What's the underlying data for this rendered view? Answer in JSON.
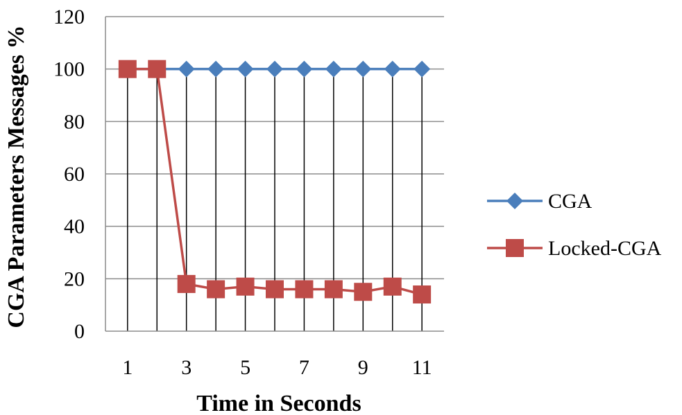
{
  "chart_data": {
    "type": "line",
    "title": "",
    "xlabel": "Time in Seconds",
    "ylabel": "CGA Parameters Messages %",
    "x": [
      1,
      2,
      3,
      4,
      5,
      6,
      7,
      8,
      9,
      10,
      11
    ],
    "x_tick_labels": [
      "1",
      "3",
      "5",
      "7",
      "9",
      "11"
    ],
    "y_tick_labels": [
      "0",
      "20",
      "40",
      "60",
      "80",
      "100",
      "120"
    ],
    "ylim": [
      0,
      120
    ],
    "xlim": [
      0.25,
      11.75
    ],
    "grid": "horizontal and vertical",
    "legend": "right",
    "series": [
      {
        "name": "CGA",
        "color": "#4a7ebb",
        "marker": "diamond",
        "values": [
          100,
          100,
          100,
          100,
          100,
          100,
          100,
          100,
          100,
          100,
          100
        ]
      },
      {
        "name": "Locked-CGA",
        "color": "#be4b48",
        "marker": "square",
        "values": [
          100,
          100,
          18,
          16,
          17,
          16,
          16,
          16,
          15,
          17,
          14
        ]
      }
    ]
  }
}
